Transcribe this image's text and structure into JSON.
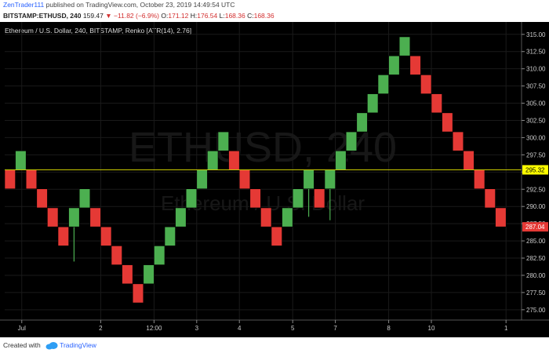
{
  "header": {
    "author": "ZenTrader111",
    "published_text": "published on TradingView.com, October 23, 2019 14:49:54 UTC"
  },
  "symbol_line": {
    "symbol": "BITSTAMP:ETHUSD, 240",
    "price": "159.47",
    "change": "−11.82 (−6.9%)",
    "o_label": "O:",
    "o_value": "171.12",
    "h_label": "H:",
    "h_value": "176.54",
    "l_label": "L:",
    "l_value": "168.36",
    "c_label": "C:",
    "c_value": "168.36"
  },
  "footer": {
    "created_with": "Created with",
    "brand": "TradingView"
  },
  "colors": {
    "up": "#4caf50",
    "down": "#e53935",
    "background": "#000000",
    "last_price_label_bg": "#e53935",
    "price_line_label_bg": "#ffff00"
  },
  "chart_data": {
    "type": "renko",
    "title": "Ethereum / U.S. Dollar, 240, BITSTAMP, Renko [ATR(14), 2.76]",
    "watermark_symbol": "ETHUSD, 240",
    "watermark_name": "Ethereum / U.S. Dollar",
    "ylim": [
      273.5,
      316.8
    ],
    "y_ticks": [
      {
        "value": 315.0,
        "label": "315.00"
      },
      {
        "value": 312.5,
        "label": "312.50"
      },
      {
        "value": 310.0,
        "label": "310.00"
      },
      {
        "value": 307.5,
        "label": "307.50"
      },
      {
        "value": 305.0,
        "label": "305.00"
      },
      {
        "value": 302.5,
        "label": "302.50"
      },
      {
        "value": 300.0,
        "label": "300.00"
      },
      {
        "value": 297.5,
        "label": "297.50"
      },
      {
        "value": 295.0,
        "label": "295.00"
      },
      {
        "value": 292.5,
        "label": "292.50"
      },
      {
        "value": 290.0,
        "label": "290.00"
      },
      {
        "value": 287.5,
        "label": "287.50"
      },
      {
        "value": 285.0,
        "label": "285.00"
      },
      {
        "value": 282.5,
        "label": "282.50"
      },
      {
        "value": 280.0,
        "label": "280.00"
      },
      {
        "value": 277.5,
        "label": "277.50"
      },
      {
        "value": 275.0,
        "label": "275.00"
      }
    ],
    "x_ticks": [
      {
        "brick": 1.6,
        "label": "Jul"
      },
      {
        "brick": 9.0,
        "label": "2"
      },
      {
        "brick": 14.0,
        "label": "12:00"
      },
      {
        "brick": 18.0,
        "label": "3"
      },
      {
        "brick": 22.0,
        "label": "4"
      },
      {
        "brick": 27.0,
        "label": "5"
      },
      {
        "brick": 31.0,
        "label": "7"
      },
      {
        "brick": 36.0,
        "label": "8"
      },
      {
        "brick": 40.0,
        "label": "10"
      },
      {
        "brick": 47.0,
        "label": "1"
      }
    ],
    "bricks": [
      {
        "open": 295.32,
        "close": 292.56
      },
      {
        "open": 295.32,
        "close": 298.08
      },
      {
        "open": 295.32,
        "close": 292.56
      },
      {
        "open": 292.56,
        "close": 289.8
      },
      {
        "open": 289.8,
        "close": 287.04
      },
      {
        "open": 287.04,
        "close": 284.28
      },
      {
        "open": 287.04,
        "close": 289.8,
        "low": 282.0
      },
      {
        "open": 289.8,
        "close": 292.56
      },
      {
        "open": 289.8,
        "close": 287.04
      },
      {
        "open": 287.04,
        "close": 284.28
      },
      {
        "open": 284.28,
        "close": 281.52
      },
      {
        "open": 281.52,
        "close": 278.76
      },
      {
        "open": 278.76,
        "close": 276.0
      },
      {
        "open": 278.76,
        "close": 281.52
      },
      {
        "open": 281.52,
        "close": 284.28
      },
      {
        "open": 284.28,
        "close": 287.04
      },
      {
        "open": 287.04,
        "close": 289.8
      },
      {
        "open": 289.8,
        "close": 292.56
      },
      {
        "open": 292.56,
        "close": 295.32
      },
      {
        "open": 295.32,
        "close": 298.08
      },
      {
        "open": 298.08,
        "close": 300.84
      },
      {
        "open": 298.08,
        "close": 295.32
      },
      {
        "open": 295.32,
        "close": 292.56
      },
      {
        "open": 292.56,
        "close": 289.8
      },
      {
        "open": 289.8,
        "close": 287.04
      },
      {
        "open": 287.04,
        "close": 284.28
      },
      {
        "open": 287.04,
        "close": 289.8
      },
      {
        "open": 289.8,
        "close": 292.56
      },
      {
        "open": 292.56,
        "close": 295.32,
        "low": 288.5
      },
      {
        "open": 292.56,
        "close": 289.8
      },
      {
        "open": 292.56,
        "close": 295.32,
        "low": 288.0
      },
      {
        "open": 295.32,
        "close": 298.08
      },
      {
        "open": 298.08,
        "close": 300.84
      },
      {
        "open": 300.84,
        "close": 303.6
      },
      {
        "open": 303.6,
        "close": 306.36
      },
      {
        "open": 306.36,
        "close": 309.12
      },
      {
        "open": 309.12,
        "close": 311.88
      },
      {
        "open": 311.88,
        "close": 314.64
      },
      {
        "open": 311.88,
        "close": 309.12
      },
      {
        "open": 309.12,
        "close": 306.36
      },
      {
        "open": 306.36,
        "close": 303.6
      },
      {
        "open": 303.6,
        "close": 300.84
      },
      {
        "open": 300.84,
        "close": 298.08
      },
      {
        "open": 298.08,
        "close": 295.32
      },
      {
        "open": 295.32,
        "close": 292.56
      },
      {
        "open": 292.56,
        "close": 289.8
      },
      {
        "open": 289.8,
        "close": 287.04
      }
    ],
    "price_line": {
      "value": 295.32,
      "label": "295.32"
    },
    "last_price": {
      "value": 287.04,
      "label": "287.04"
    }
  }
}
